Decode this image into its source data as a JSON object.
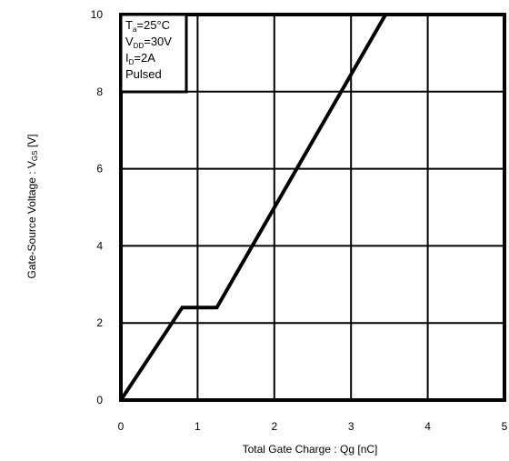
{
  "chart_data": {
    "type": "line",
    "title": "",
    "xlabel": "Total Gate Charge : Qg  [nC]",
    "ylabel": "Gate-Source Voltage : V",
    "ylabel_subscript": "GS",
    "ylabel_unit": " [V]",
    "xlim": [
      0,
      5
    ],
    "ylim": [
      0,
      10
    ],
    "x_ticks": [
      0,
      1,
      2,
      3,
      4,
      5
    ],
    "y_ticks": [
      0,
      2,
      4,
      6,
      8,
      10
    ],
    "grid": true,
    "series": [
      {
        "x": [
          0,
          0.8,
          1.25,
          3.45
        ],
        "y": [
          0,
          2.4,
          2.4,
          10
        ]
      }
    ],
    "annotation_lines": [
      {
        "main": "T",
        "sub": "a",
        "rest": "=25°C"
      },
      {
        "main": "V",
        "sub": "DD",
        "rest": "=30V"
      },
      {
        "main": "I",
        "sub": "D",
        "rest": "=2A"
      },
      {
        "main": "Pulsed",
        "sub": "",
        "rest": ""
      }
    ],
    "annotation_placement": "top-left",
    "colors": {
      "line": "#000000",
      "grid": "#000000",
      "background": "#ffffff"
    }
  }
}
